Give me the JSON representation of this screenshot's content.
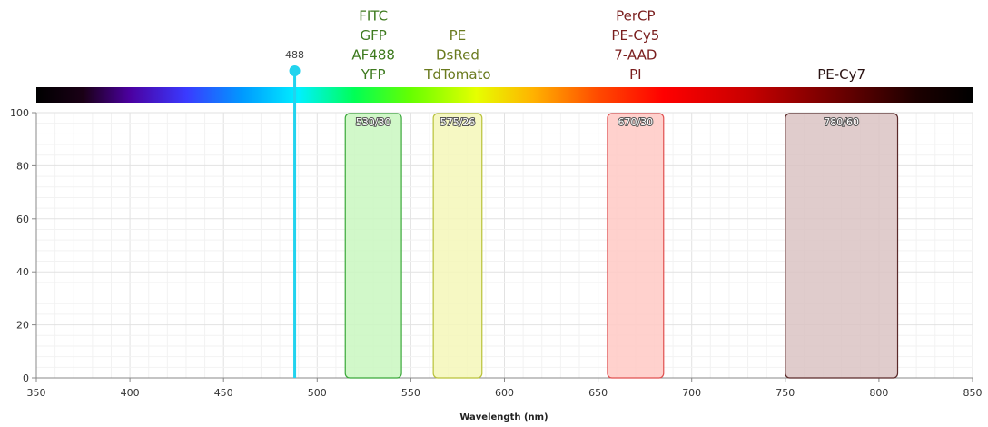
{
  "chart_data": {
    "type": "area",
    "xlabel": "Wavelength (nm)",
    "ylabel": "",
    "xlim": [
      350,
      850
    ],
    "ylim": [
      0,
      100
    ],
    "x_ticks": [
      350,
      400,
      450,
      500,
      550,
      600,
      650,
      700,
      750,
      800,
      850
    ],
    "y_ticks": [
      0,
      20,
      40,
      60,
      80,
      100
    ],
    "grid": true,
    "spectrum_bar": true,
    "laser": {
      "label": "488",
      "wavelength": 488,
      "color": "#22d3ee"
    },
    "filters": [
      {
        "label": "530/30",
        "center": 530,
        "width": 30,
        "height": 100,
        "fill": "#c9f7c0",
        "stroke": "#3aa83a",
        "fluorochromes": [
          "FITC",
          "GFP",
          "AF488",
          "YFP"
        ],
        "text_color": "#3d7a1e"
      },
      {
        "label": "575/26",
        "center": 575,
        "width": 26,
        "height": 100,
        "fill": "#f4f7b8",
        "stroke": "#b9c23a",
        "fluorochromes": [
          "PE",
          "DsRed",
          "TdTomato"
        ],
        "text_color": "#6a7a1e"
      },
      {
        "label": "670/30",
        "center": 670,
        "width": 30,
        "height": 100,
        "fill": "#ffc9c4",
        "stroke": "#e05050",
        "fluorochromes": [
          "PerCP",
          "PE-Cy5",
          "7-AAD",
          "PI"
        ],
        "text_color": "#7a1e1e"
      },
      {
        "label": "780/60",
        "center": 780,
        "width": 60,
        "height": 100,
        "fill": "#dbc3c3",
        "stroke": "#5a2a2a",
        "fluorochromes": [
          "PE-Cy7"
        ],
        "text_color": "#2a1212"
      }
    ]
  }
}
